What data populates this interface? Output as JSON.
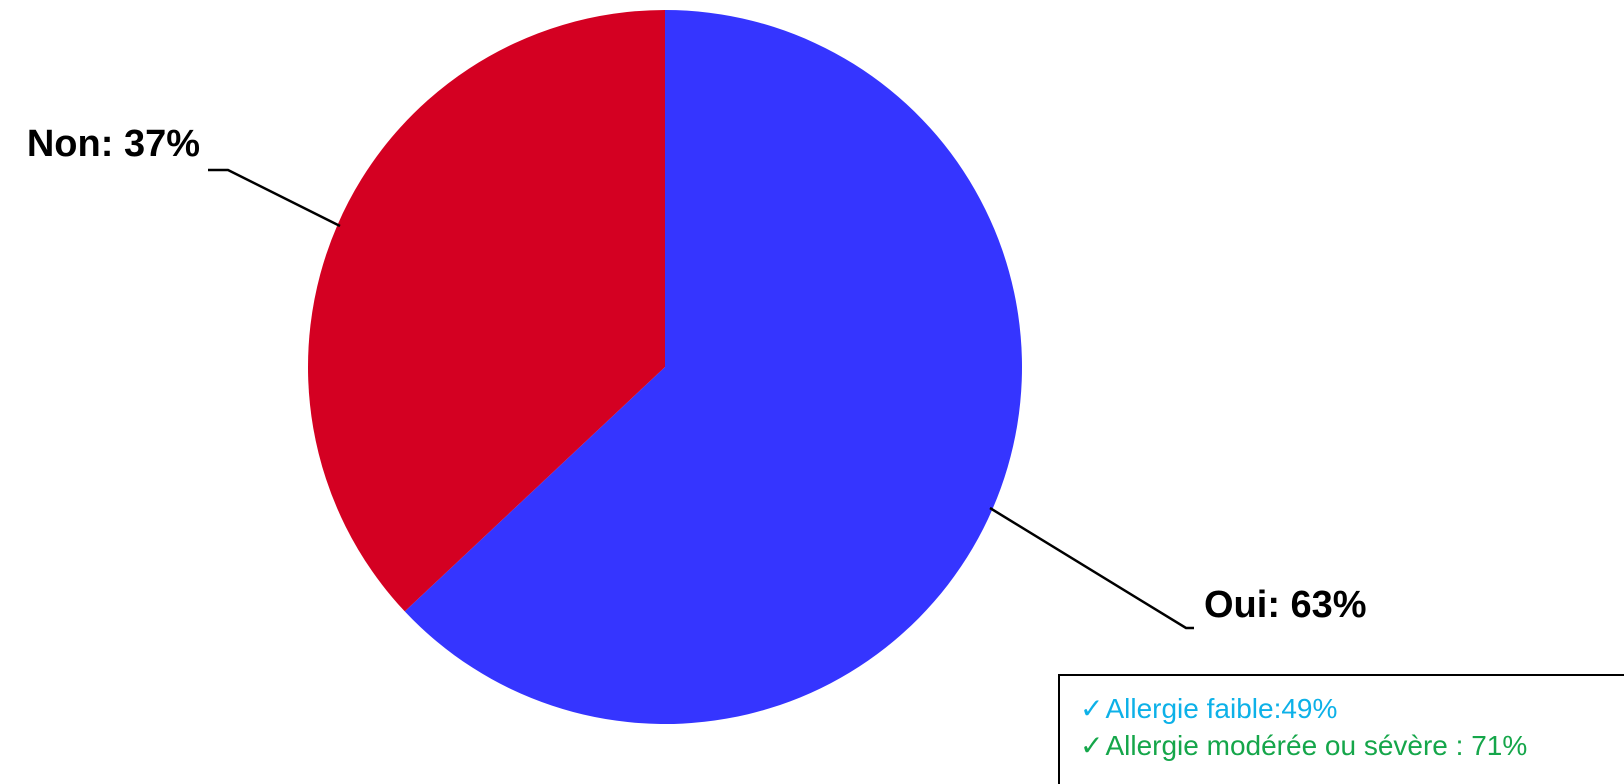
{
  "chart_data": {
    "type": "pie",
    "slices": [
      {
        "label": "Oui",
        "value": 63,
        "display": "Oui: 63%",
        "color": "#3535ff"
      },
      {
        "label": "Non",
        "value": 37,
        "display": "Non: 37%",
        "color": "#d40022"
      }
    ],
    "start": "12 o'clock",
    "direction": "clockwise"
  },
  "annotation": {
    "lines": [
      {
        "check": "✓",
        "text": "Allergie faible:49%",
        "color": "#0db1e8"
      },
      {
        "check": "✓",
        "text": "Allergie modérée ou sévère : 71%",
        "color": "#15a64a"
      }
    ]
  }
}
